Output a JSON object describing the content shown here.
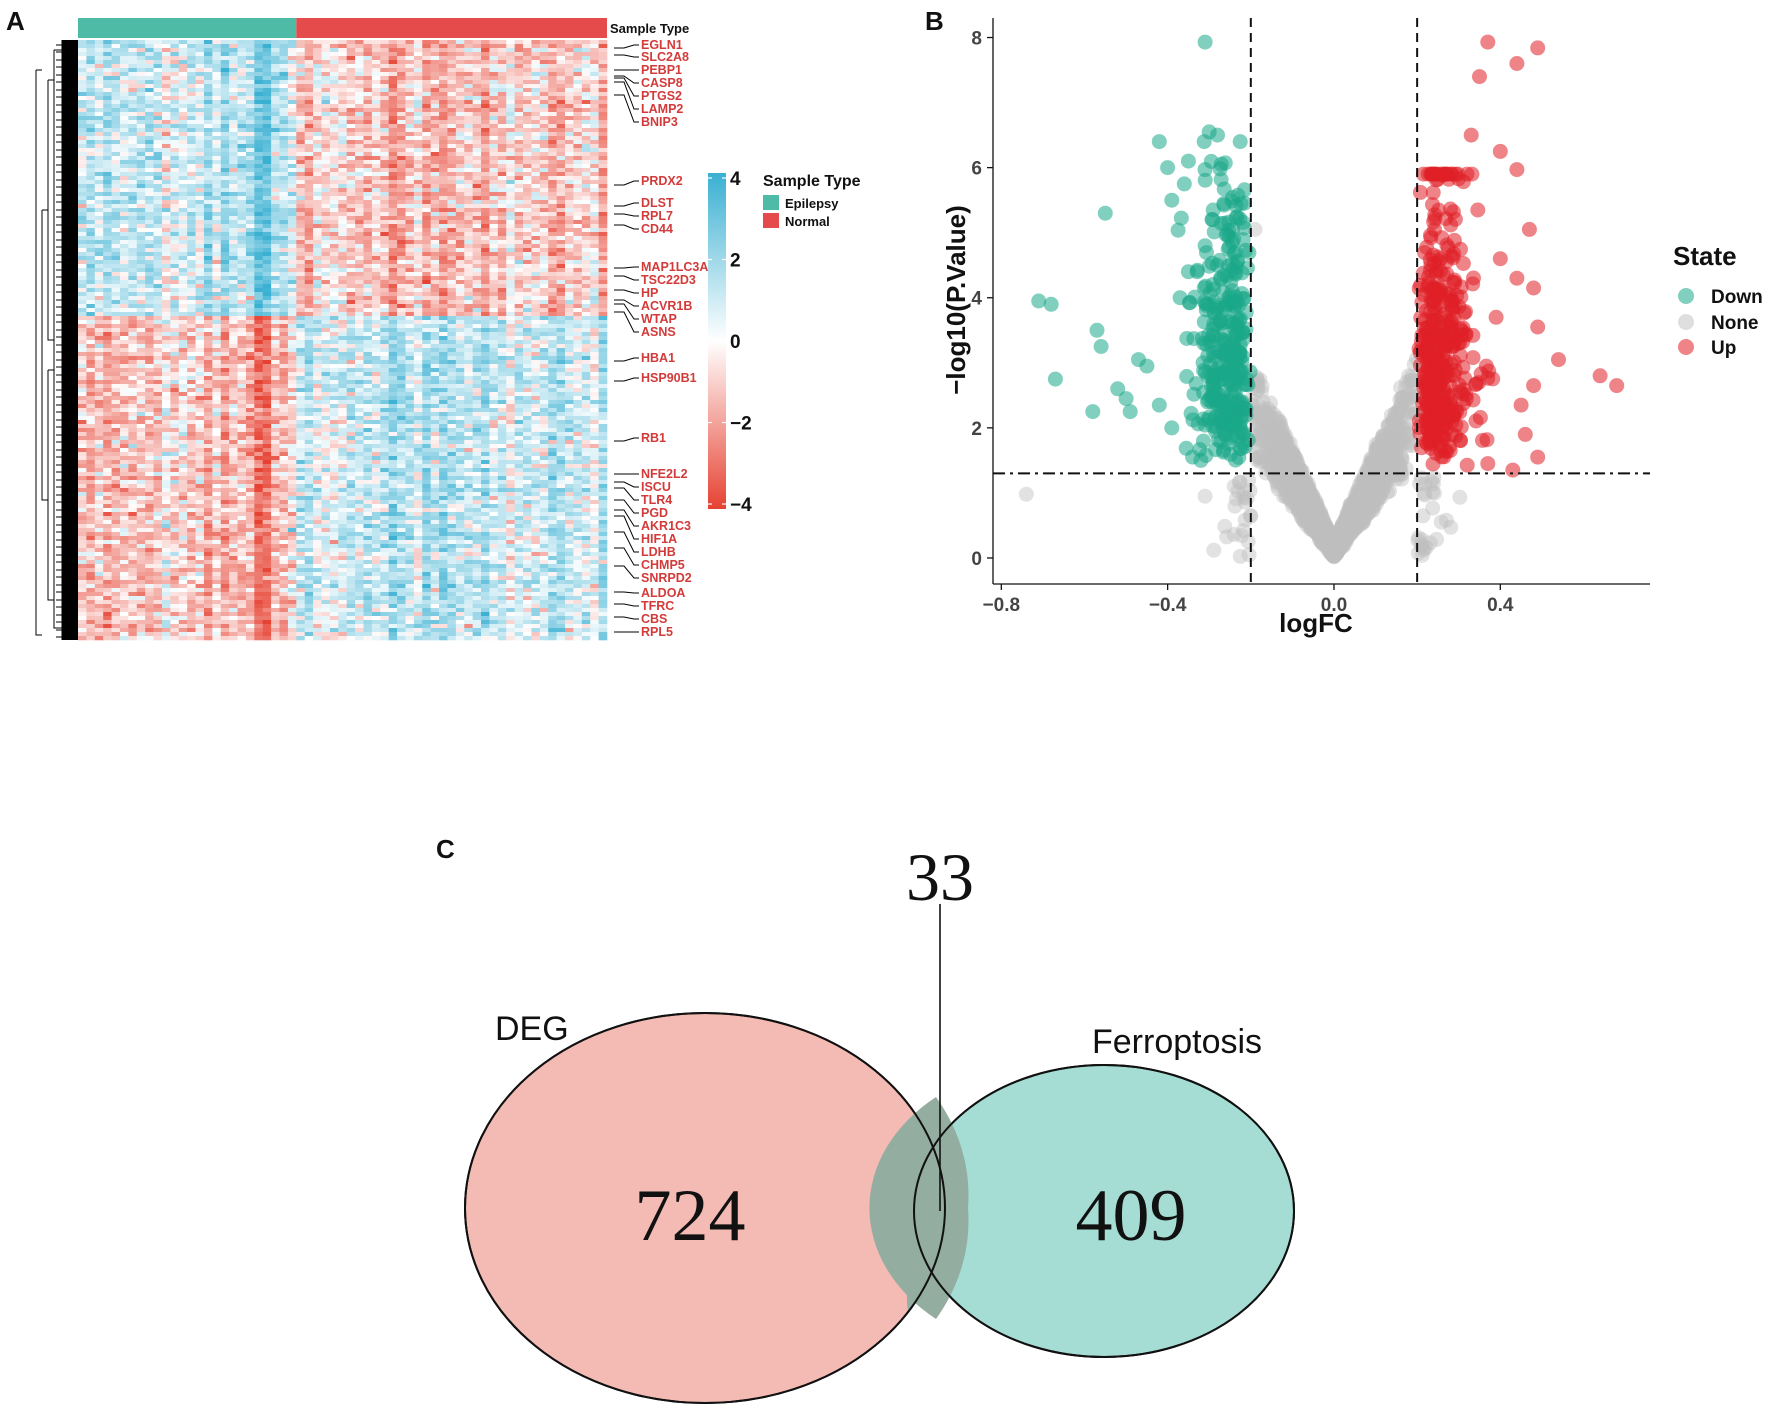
{
  "panels": {
    "a": "A",
    "b": "B",
    "c": "C"
  },
  "heatmap": {
    "annotation_title": "Sample Type",
    "legend_title": "Sample Type",
    "groups": [
      {
        "name": "Epilepsy",
        "color": "#4dbba6",
        "count": 26
      },
      {
        "name": "Normal",
        "color": "#e64b4b",
        "count": 37
      }
    ],
    "color_ticks": [
      "4",
      "2",
      "0",
      "−2",
      "−4"
    ],
    "color_range": [
      -4,
      4
    ],
    "colors": {
      "high": "#3ab0d2",
      "mid": "#ffffff",
      "low": "#e64232"
    },
    "genes": [
      "EGLN1",
      "SLC2A8",
      "PEBP1",
      "CASP8",
      "PTGS2",
      "LAMP2",
      "BNIP3",
      "PRDX2",
      "DLST",
      "RPL7",
      "CD44",
      "MAP1LC3A",
      "TSC22D3",
      "HP",
      "ACVR1B",
      "WTAP",
      "ASNS",
      "HBA1",
      "HSP90B1",
      "RB1",
      "NFE2L2",
      "ISCU",
      "TLR4",
      "PGD",
      "AKR1C3",
      "HIF1A",
      "LDHB",
      "CHMP5",
      "SNRPD2",
      "ALDOA",
      "TFRC",
      "CBS",
      "RPL5"
    ]
  },
  "chart_data": [
    {
      "type": "scatter",
      "subtype": "volcano",
      "xlabel": "logFC",
      "ylabel": "−log10(P.Value)",
      "xlim": [
        -0.82,
        0.76
      ],
      "ylim": [
        -0.4,
        8.3
      ],
      "x_ticks": [
        -0.8,
        -0.4,
        0.0,
        0.4
      ],
      "x_tick_labels": [
        "−0.8",
        "−0.4",
        "0.0",
        "0.4"
      ],
      "y_ticks": [
        0,
        2,
        4,
        6,
        8
      ],
      "y_tick_labels": [
        "0",
        "2",
        "4",
        "6",
        "8"
      ],
      "thresholds": {
        "logFC": [
          -0.2,
          0.2
        ],
        "neg_log10_p": 1.3
      },
      "legend": {
        "title": "State",
        "position": "right",
        "items": [
          {
            "name": "Down",
            "color": "#1aa888"
          },
          {
            "name": "None",
            "color": "#bebebe"
          },
          {
            "name": "Up",
            "color": "#e01f26"
          }
        ]
      },
      "highlight_points": {
        "down": [
          [
            -0.31,
            7.93
          ],
          [
            -0.42,
            6.4
          ],
          [
            -0.3,
            6.55
          ],
          [
            -0.28,
            6.5
          ],
          [
            -0.4,
            6.0
          ],
          [
            -0.35,
            6.1
          ],
          [
            -0.36,
            5.75
          ],
          [
            -0.55,
            5.3
          ],
          [
            -0.39,
            5.5
          ],
          [
            -0.71,
            3.95
          ],
          [
            -0.68,
            3.9
          ],
          [
            -0.57,
            3.5
          ],
          [
            -0.56,
            3.25
          ],
          [
            -0.47,
            3.05
          ],
          [
            -0.45,
            2.95
          ],
          [
            -0.67,
            2.75
          ],
          [
            -0.52,
            2.6
          ],
          [
            -0.5,
            2.45
          ],
          [
            -0.58,
            2.25
          ],
          [
            -0.49,
            2.25
          ],
          [
            -0.42,
            2.35
          ],
          [
            -0.39,
            2.0
          ],
          [
            -0.34,
            1.55
          ],
          [
            -0.32,
            1.5
          ],
          [
            -0.35,
            4.4
          ],
          [
            -0.31,
            4.8
          ],
          [
            -0.37,
            4.0
          ]
        ],
        "up": [
          [
            0.37,
            7.93
          ],
          [
            0.49,
            7.84
          ],
          [
            0.44,
            7.6
          ],
          [
            0.35,
            7.4
          ],
          [
            0.33,
            6.5
          ],
          [
            0.4,
            6.25
          ],
          [
            0.44,
            5.97
          ],
          [
            0.32,
            5.9
          ],
          [
            0.47,
            5.05
          ],
          [
            0.4,
            4.6
          ],
          [
            0.44,
            4.3
          ],
          [
            0.48,
            4.15
          ],
          [
            0.39,
            3.7
          ],
          [
            0.49,
            3.55
          ],
          [
            0.54,
            3.05
          ],
          [
            0.64,
            2.8
          ],
          [
            0.68,
            2.65
          ],
          [
            0.48,
            2.65
          ],
          [
            0.45,
            2.35
          ],
          [
            0.46,
            1.9
          ],
          [
            0.49,
            1.55
          ],
          [
            0.43,
            1.35
          ],
          [
            0.37,
            1.45
          ]
        ],
        "none": [
          [
            -0.74,
            0.98
          ],
          [
            -0.19,
            5.05
          ],
          [
            -0.31,
            0.95
          ],
          [
            -0.2,
            0.65
          ],
          [
            -0.24,
            1.1
          ]
        ]
      }
    },
    {
      "type": "venn",
      "sets": [
        {
          "name": "DEG",
          "only": 724,
          "color": "#f4bbb4"
        },
        {
          "name": "Ferroptosis",
          "only": 409,
          "color": "#a5ddd4"
        }
      ],
      "intersection": 33,
      "labels": {
        "deg_only": "724",
        "ferro_only": "409",
        "intersection": "33"
      }
    }
  ]
}
